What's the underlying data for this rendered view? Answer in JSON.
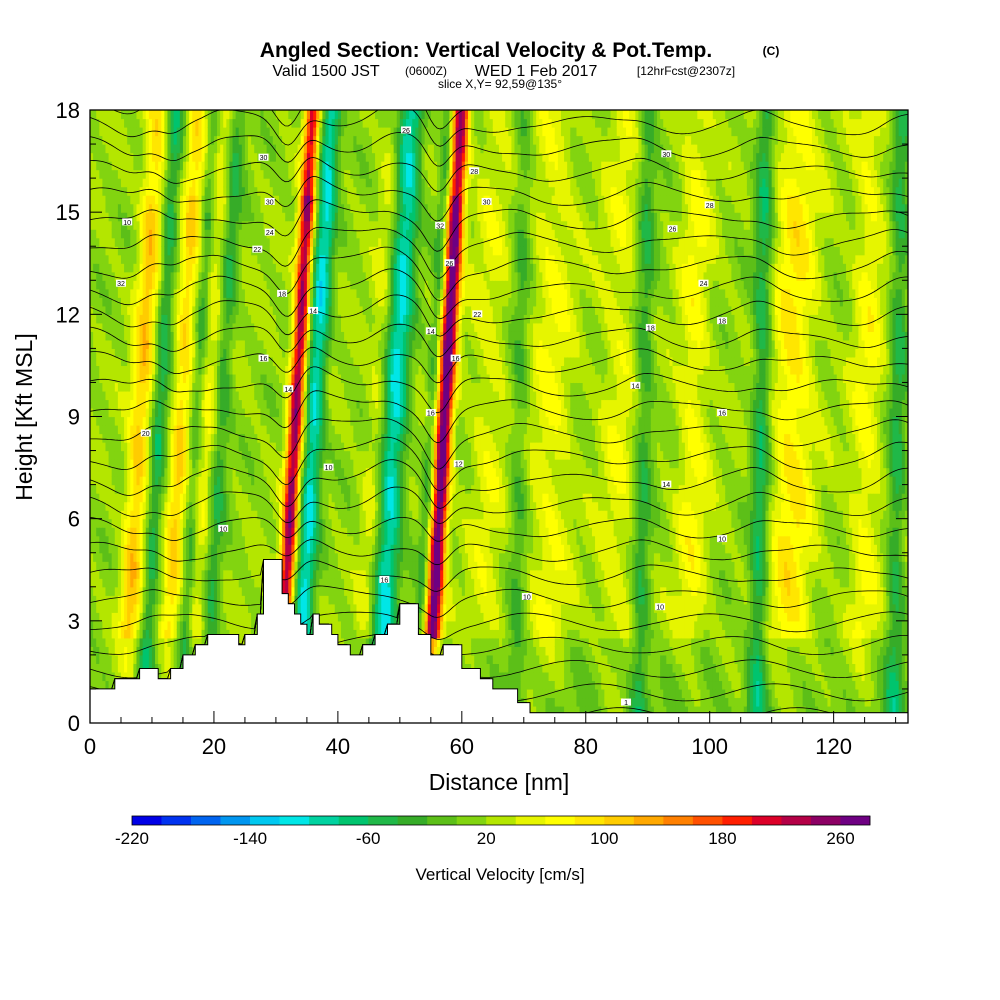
{
  "header": {
    "title_main": "Angled Section: Vertical Velocity & Pot.Temp.",
    "title_unit": "(C)",
    "valid_a": "Valid 1500 JST",
    "valid_b": "(0600Z)",
    "valid_c": "WED 1 Feb 2017",
    "valid_d": "[12hrFcst@2307z]",
    "slice": "slice X,Y= 92,59@135°"
  },
  "chart_data": {
    "type": "heatmap",
    "xlabel": "Distance [nm]",
    "ylabel": "Height [Kft MSL]",
    "xlim": [
      0,
      132
    ],
    "ylim": [
      0,
      18
    ],
    "x_ticks": [
      0,
      20,
      40,
      60,
      80,
      100,
      120
    ],
    "y_ticks": [
      0,
      3,
      6,
      9,
      12,
      15,
      18
    ],
    "x_tick_labels": [
      "0",
      "20",
      "40",
      "60",
      "80",
      "100",
      "120"
    ],
    "y_tick_labels": [
      "0",
      "3",
      "6",
      "9",
      "12",
      "15",
      "18"
    ],
    "grid": false,
    "colorbar": {
      "label": "Vertical Velocity [cm/s]",
      "min": -220,
      "max": 280,
      "step": 20,
      "tick_values": [
        -220,
        -140,
        -60,
        20,
        100,
        180,
        260
      ],
      "tick_labels": [
        "-220",
        "-140",
        "-60",
        "20",
        "100",
        "180",
        "260"
      ],
      "colors": [
        "#0000e6",
        "#0032f0",
        "#0064f0",
        "#0096f0",
        "#00c8f0",
        "#00e6e6",
        "#00d2a0",
        "#00c46e",
        "#20b848",
        "#36ac28",
        "#5cbf18",
        "#82d410",
        "#b4e600",
        "#e6f500",
        "#ffff00",
        "#ffe600",
        "#ffcc00",
        "#ffa800",
        "#ff8000",
        "#ff5000",
        "#ff1e00",
        "#dc0028",
        "#b40046",
        "#8c0064",
        "#6e0082"
      ]
    },
    "updrafts": [
      {
        "x": 7,
        "w": 1.8,
        "amp": 90
      },
      {
        "x": 13.5,
        "w": 1.5,
        "amp": 80
      },
      {
        "x": 18,
        "w": 1.4,
        "amp": 40
      },
      {
        "x": 32,
        "w": 1.2,
        "amp": 230
      },
      {
        "x": 45,
        "w": 1.5,
        "amp": 30
      },
      {
        "x": 56,
        "w": 1.3,
        "amp": 270
      },
      {
        "x": 64,
        "w": 3.0,
        "amp": 30
      },
      {
        "x": 74,
        "w": 3.5,
        "amp": 40
      },
      {
        "x": 85,
        "w": 3.0,
        "amp": 35
      },
      {
        "x": 97,
        "w": 2.5,
        "amp": 45
      },
      {
        "x": 113,
        "w": 3.5,
        "amp": 65
      },
      {
        "x": 125,
        "w": 2.5,
        "amp": 45
      }
    ],
    "downdrafts": [
      {
        "x": 10,
        "w": 1.3,
        "amp": -70
      },
      {
        "x": 16,
        "w": 1.0,
        "amp": -40
      },
      {
        "x": 20,
        "w": 1.4,
        "amp": -55
      },
      {
        "x": 35,
        "w": 1.6,
        "amp": -120
      },
      {
        "x": 48,
        "w": 2.0,
        "amp": -120
      },
      {
        "x": 54,
        "w": 1.0,
        "amp": -50
      },
      {
        "x": 69,
        "w": 1.5,
        "amp": -40
      },
      {
        "x": 89,
        "w": 1.5,
        "amp": -55
      },
      {
        "x": 108,
        "w": 1.5,
        "amp": -75
      },
      {
        "x": 130,
        "w": 1.5,
        "amp": -60
      }
    ],
    "terrain": [
      [
        0,
        1.0
      ],
      [
        4,
        1.0
      ],
      [
        4,
        1.3
      ],
      [
        8,
        1.3
      ],
      [
        8,
        1.6
      ],
      [
        11,
        1.6
      ],
      [
        11,
        1.3
      ],
      [
        13,
        1.3
      ],
      [
        13,
        1.6
      ],
      [
        15,
        1.6
      ],
      [
        15,
        2.0
      ],
      [
        17,
        2.0
      ],
      [
        17,
        2.3
      ],
      [
        19,
        2.3
      ],
      [
        19,
        2.6
      ],
      [
        24,
        2.6
      ],
      [
        24,
        2.3
      ],
      [
        25,
        2.3
      ],
      [
        25,
        2.6
      ],
      [
        27,
        2.6
      ],
      [
        27,
        3.2
      ],
      [
        28,
        3.2
      ],
      [
        28,
        4.8
      ],
      [
        31,
        4.8
      ],
      [
        31,
        3.8
      ],
      [
        32,
        3.8
      ],
      [
        32,
        3.5
      ],
      [
        33,
        3.5
      ],
      [
        33,
        3.2
      ],
      [
        34,
        3.2
      ],
      [
        34,
        2.9
      ],
      [
        35,
        2.9
      ],
      [
        35,
        2.6
      ],
      [
        36,
        2.6
      ],
      [
        36,
        3.2
      ],
      [
        37,
        3.2
      ],
      [
        37,
        2.9
      ],
      [
        39,
        2.9
      ],
      [
        39,
        2.6
      ],
      [
        40,
        2.6
      ],
      [
        40,
        2.3
      ],
      [
        42,
        2.3
      ],
      [
        42,
        2.0
      ],
      [
        44,
        2.0
      ],
      [
        44,
        2.3
      ],
      [
        46,
        2.3
      ],
      [
        46,
        2.6
      ],
      [
        48,
        2.6
      ],
      [
        48,
        2.9
      ],
      [
        50,
        2.9
      ],
      [
        50,
        3.5
      ],
      [
        53,
        3.5
      ],
      [
        53,
        2.6
      ],
      [
        55,
        2.6
      ],
      [
        55,
        2.0
      ],
      [
        57,
        2.0
      ],
      [
        57,
        2.3
      ],
      [
        60,
        2.3
      ],
      [
        60,
        1.6
      ],
      [
        63,
        1.6
      ],
      [
        63,
        1.3
      ],
      [
        65,
        1.3
      ],
      [
        65,
        1.0
      ],
      [
        69,
        1.0
      ],
      [
        69,
        0.6
      ],
      [
        71,
        0.6
      ],
      [
        71,
        0.3
      ],
      [
        132,
        0.3
      ]
    ],
    "contour_levels": {
      "min": 0,
      "max": 72,
      "step": 2
    },
    "contour_labels": [
      {
        "text": "10",
        "x": 21.5,
        "y": 5.7
      },
      {
        "text": "10",
        "x": 38.5,
        "y": 7.5
      },
      {
        "text": "16",
        "x": 47.5,
        "y": 4.2
      },
      {
        "text": "10",
        "x": 70.5,
        "y": 3.7
      },
      {
        "text": "10",
        "x": 92,
        "y": 3.4
      },
      {
        "text": "10",
        "x": 102,
        "y": 5.4
      },
      {
        "text": "14",
        "x": 93,
        "y": 7.0
      },
      {
        "text": "14",
        "x": 88,
        "y": 9.9
      },
      {
        "text": "16",
        "x": 102,
        "y": 9.1
      },
      {
        "text": "18",
        "x": 90.5,
        "y": 11.6
      },
      {
        "text": "18",
        "x": 102,
        "y": 11.8
      },
      {
        "text": "24",
        "x": 99,
        "y": 12.9
      },
      {
        "text": "26",
        "x": 94,
        "y": 14.5
      },
      {
        "text": "28",
        "x": 100,
        "y": 15.2
      },
      {
        "text": "30",
        "x": 93,
        "y": 16.7
      },
      {
        "text": "28",
        "x": 62,
        "y": 16.2
      },
      {
        "text": "30",
        "x": 64,
        "y": 15.3
      },
      {
        "text": "32",
        "x": 56.5,
        "y": 14.6
      },
      {
        "text": "26",
        "x": 58,
        "y": 13.5
      },
      {
        "text": "22",
        "x": 62.5,
        "y": 12.0
      },
      {
        "text": "14",
        "x": 55,
        "y": 11.5
      },
      {
        "text": "16",
        "x": 59,
        "y": 10.7
      },
      {
        "text": "16",
        "x": 55,
        "y": 9.1
      },
      {
        "text": "12",
        "x": 59.5,
        "y": 7.6
      },
      {
        "text": "10",
        "x": 6,
        "y": 14.7
      },
      {
        "text": "32",
        "x": 5,
        "y": 12.9
      },
      {
        "text": "20",
        "x": 9,
        "y": 8.5
      },
      {
        "text": "30",
        "x": 28,
        "y": 16.6
      },
      {
        "text": "30",
        "x": 29,
        "y": 15.3
      },
      {
        "text": "24",
        "x": 29,
        "y": 14.4
      },
      {
        "text": "22",
        "x": 27,
        "y": 13.9
      },
      {
        "text": "18",
        "x": 31,
        "y": 12.6
      },
      {
        "text": "14",
        "x": 36,
        "y": 12.1
      },
      {
        "text": "16",
        "x": 28,
        "y": 10.7
      },
      {
        "text": "14",
        "x": 32,
        "y": 9.8
      },
      {
        "text": "26",
        "x": 51,
        "y": 17.4
      },
      {
        "text": "1",
        "x": 86.5,
        "y": 0.6
      }
    ]
  }
}
